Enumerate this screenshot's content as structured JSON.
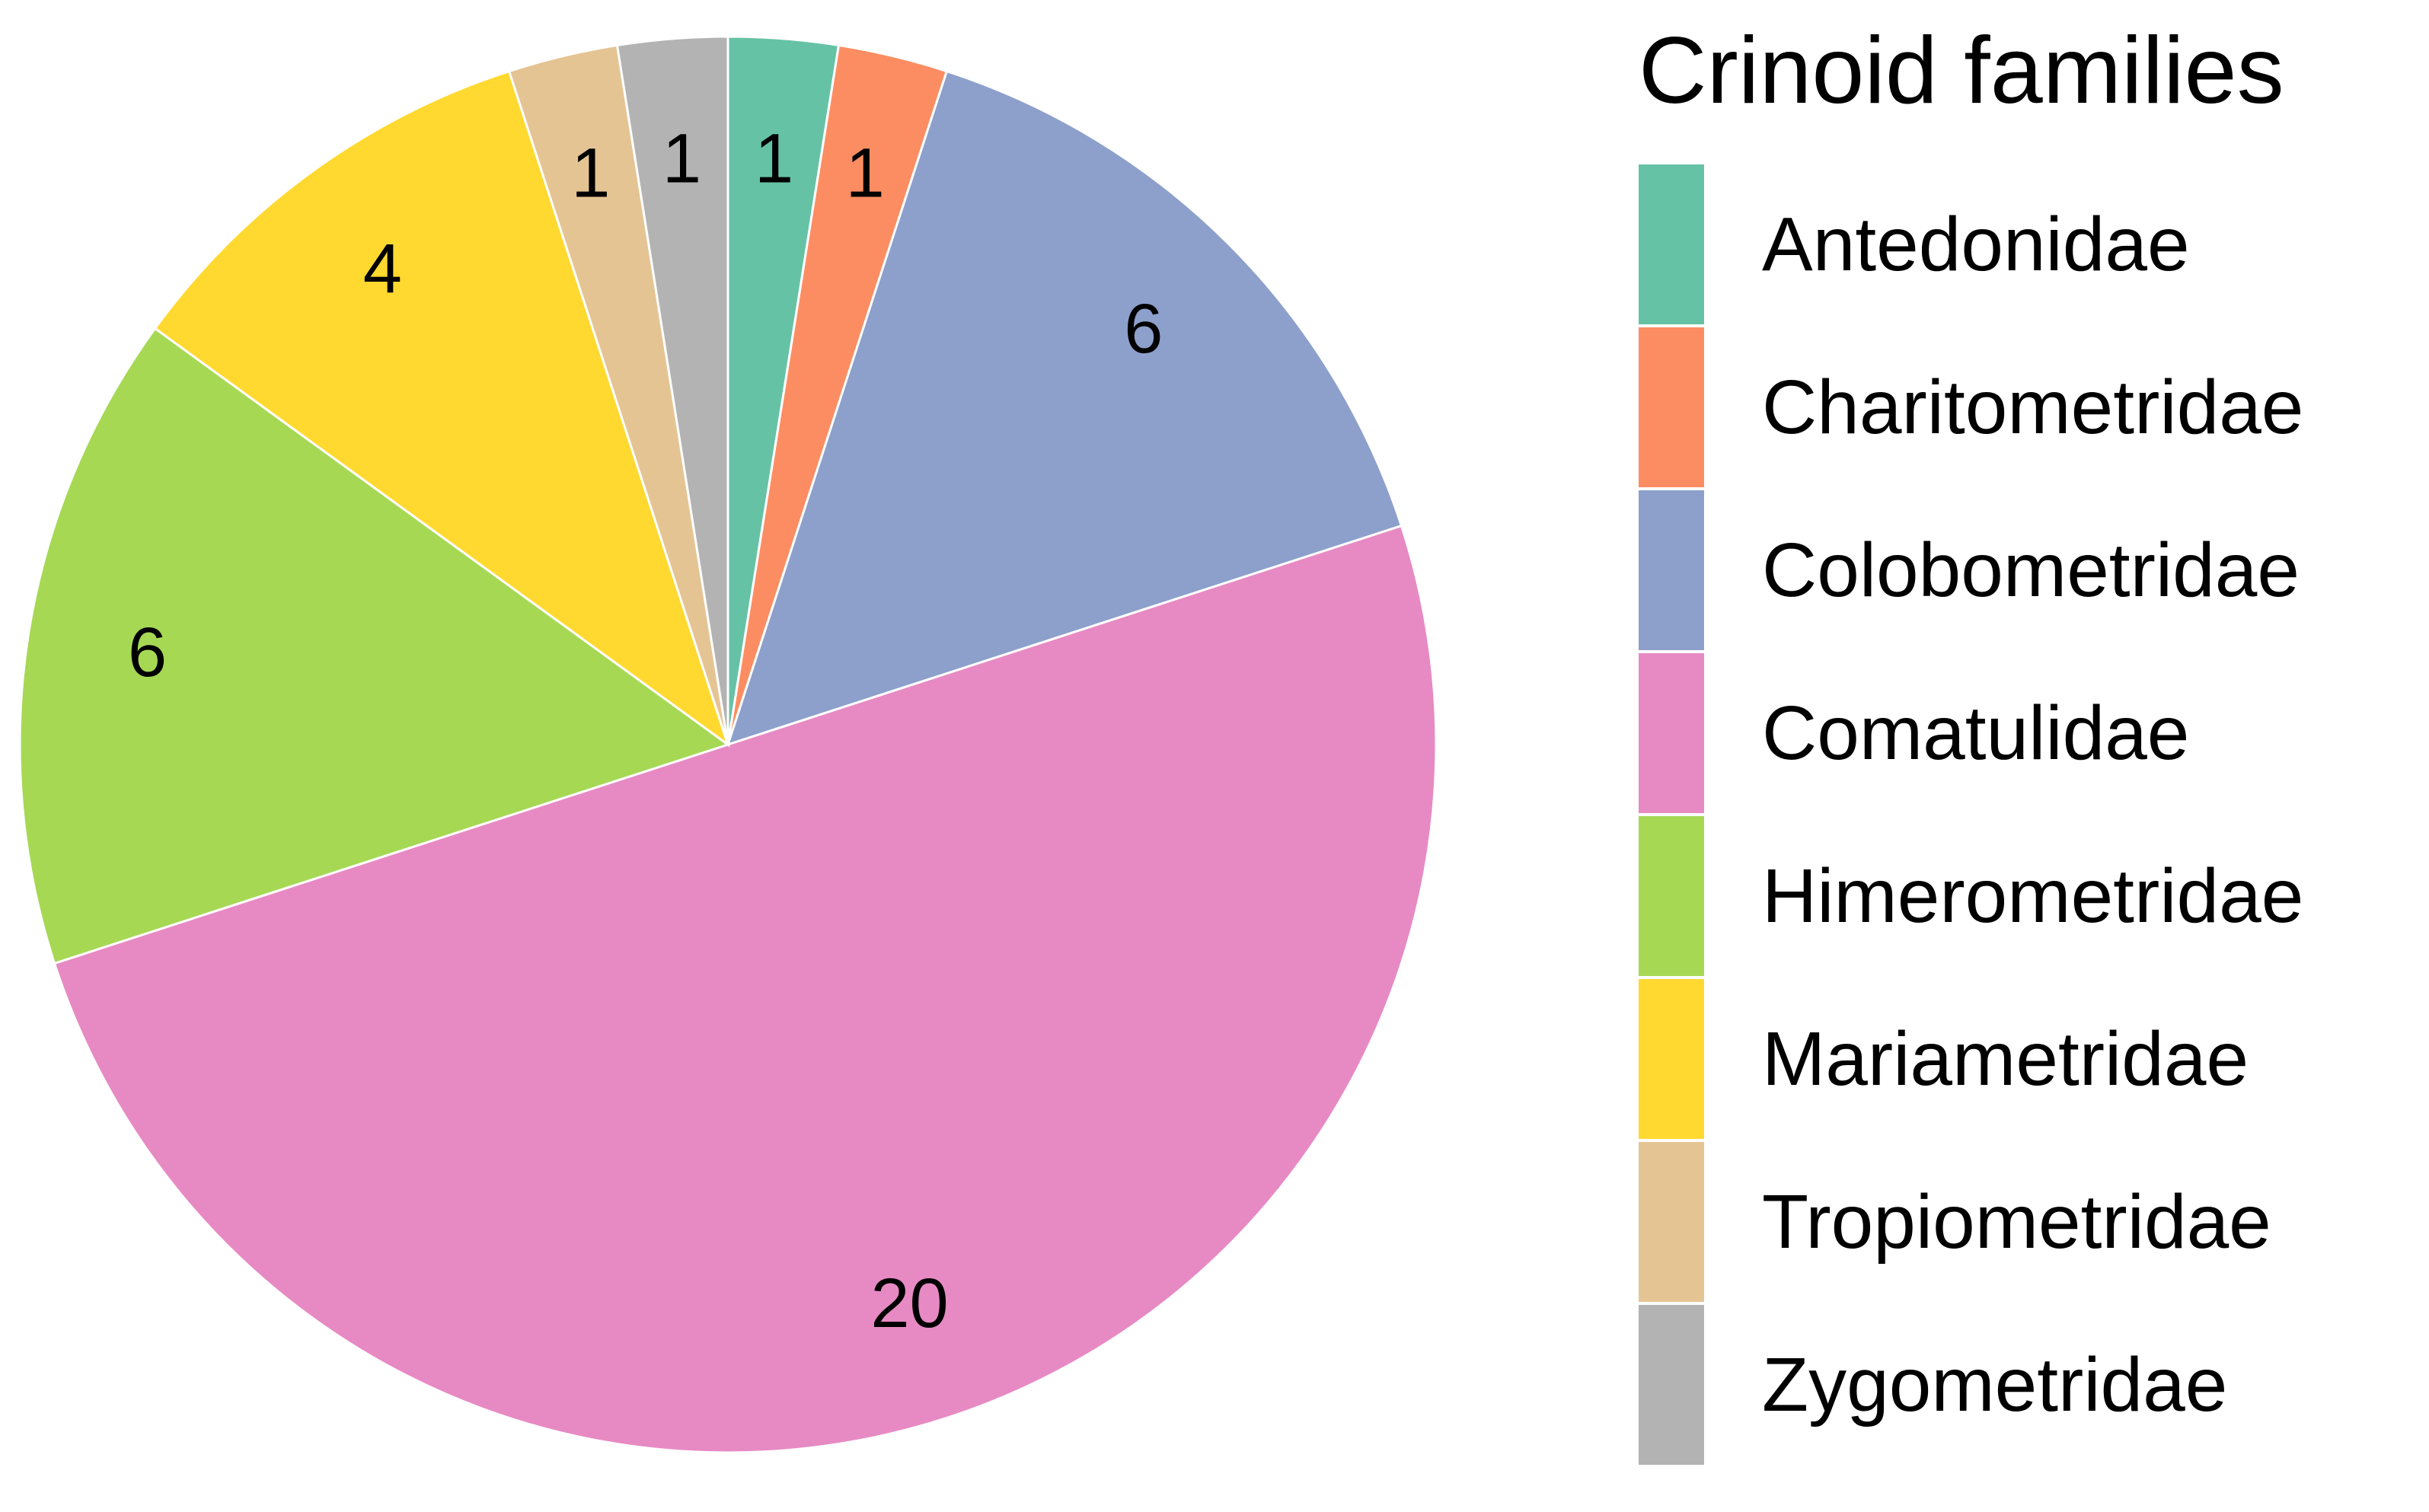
{
  "chart_data": {
    "type": "pie",
    "legend_title": "Crinoid families",
    "legend_position": "right",
    "start_angle_deg": 0,
    "direction": "clockwise",
    "slices": [
      {
        "label": "Antedonidae",
        "value": 1,
        "color": "#66C2A5"
      },
      {
        "label": "Charitometridae",
        "value": 1,
        "color": "#FC8D62"
      },
      {
        "label": "Colobometridae",
        "value": 6,
        "color": "#8DA0CB"
      },
      {
        "label": "Comatulidae",
        "value": 20,
        "color": "#E78AC3"
      },
      {
        "label": "Himerometridae",
        "value": 6,
        "color": "#A6D854"
      },
      {
        "label": "Mariametridae",
        "value": 4,
        "color": "#FFD92F"
      },
      {
        "label": "Tropiometridae",
        "value": 1,
        "color": "#E5C494"
      },
      {
        "label": "Zygometridae",
        "value": 1,
        "color": "#B3B3B3"
      }
    ]
  }
}
